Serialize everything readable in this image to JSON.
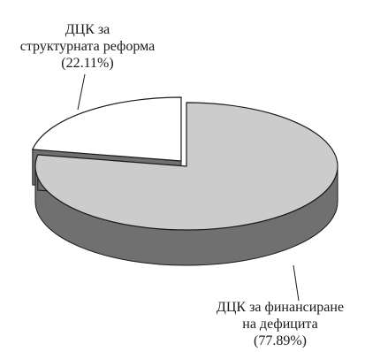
{
  "chart_data": {
    "type": "pie",
    "style": "3d-exploded",
    "slices": [
      {
        "lines": [
          "ДЦК за финансиране",
          "на дефицита",
          "(77.89%)"
        ],
        "value": 77.89,
        "color": "#cccccc",
        "side_color": "#707070"
      },
      {
        "lines": [
          "ДЦК за",
          "структурната реформа",
          "(22.11%)"
        ],
        "value": 22.11,
        "color": "#ffffff",
        "side_color": "#707070"
      }
    ],
    "legend": "none"
  }
}
